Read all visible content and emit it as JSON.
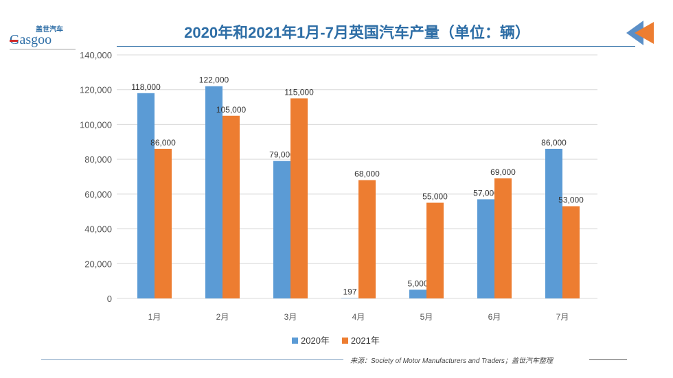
{
  "header": {
    "title": "2020年和2021年1月-7月英国汽车产量（单位：辆）",
    "logo_text": "盖世汽车 Gasgoo"
  },
  "footer": {
    "source": "来源：Society of Motor Manufacturers and Traders；盖世汽车整理"
  },
  "colors": {
    "s2020": "#5b9bd5",
    "s2021": "#ed7d31",
    "title": "#2e6ea6"
  },
  "chart_data": {
    "type": "bar",
    "title": "2020年和2021年1月-7月英国汽车产量（单位：辆）",
    "categories": [
      "1月",
      "2月",
      "3月",
      "4月",
      "5月",
      "6月",
      "7月"
    ],
    "series": [
      {
        "name": "2020年",
        "values": [
          118000,
          122000,
          79000,
          197,
          5000,
          57000,
          86000
        ],
        "labels": [
          "118,000",
          "122,000",
          "79,000",
          "197",
          "5,000",
          "57,000",
          "86,000"
        ]
      },
      {
        "name": "2021年",
        "values": [
          86000,
          105000,
          115000,
          68000,
          55000,
          69000,
          53000
        ],
        "labels": [
          "86,000",
          "105,000",
          "115,000",
          "68,000",
          "55,000",
          "69,000",
          "53,000"
        ]
      }
    ],
    "ylim": [
      0,
      140000
    ],
    "yticks": [
      "0",
      "20,000",
      "40,000",
      "60,000",
      "80,000",
      "100,000",
      "120,000",
      "140,000"
    ],
    "grid": true,
    "legend": "bottom"
  }
}
